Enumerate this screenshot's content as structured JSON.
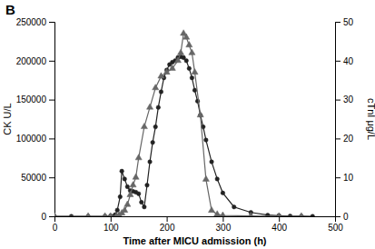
{
  "chart_data": {
    "type": "line",
    "title": "B",
    "xlabel": "Time after MICU admission (h)",
    "ylabel": "CK U/L",
    "y2label": "cTnI μg/L",
    "xlim": [
      0,
      500
    ],
    "ylim": [
      0,
      250000
    ],
    "y2lim": [
      0,
      50
    ],
    "xticks": [
      0,
      100,
      200,
      300,
      400,
      500
    ],
    "yticks": [
      0,
      50000,
      100000,
      150000,
      200000,
      250000
    ],
    "y2ticks": [
      0,
      10,
      20,
      30,
      40,
      50
    ],
    "grid": false,
    "series": [
      {
        "x": [
          0,
          30,
          60,
          90,
          100,
          108,
          112,
          117,
          120,
          125,
          130,
          135,
          140,
          145,
          150,
          155,
          160,
          165,
          170,
          175,
          180,
          185,
          190,
          195,
          200,
          205,
          210,
          215,
          220,
          225,
          230,
          235,
          240,
          245,
          250,
          255,
          260,
          265,
          270,
          280,
          290,
          300,
          320,
          350,
          380,
          400,
          420,
          440,
          460
        ],
        "values": [
          0,
          0,
          0,
          0,
          500,
          2000,
          8000,
          25000,
          58000,
          48000,
          38000,
          33000,
          32000,
          31000,
          29000,
          18000,
          12000,
          40000,
          70000,
          95000,
          115000,
          140000,
          160000,
          178000,
          188000,
          195000,
          198000,
          200000,
          204000,
          205000,
          204000,
          200000,
          190000,
          178000,
          162000,
          148000,
          130000,
          115000,
          98000,
          70000,
          48000,
          30000,
          12000,
          5000,
          1500,
          800,
          300,
          100,
          0
        ],
        "color": "#222222",
        "marker": "circle"
      },
      {
        "x": [
          0,
          60,
          90,
          100,
          110,
          115,
          120,
          125,
          130,
          135,
          140,
          145,
          150,
          160,
          170,
          180,
          190,
          200,
          210,
          220,
          225,
          230,
          235,
          240,
          245,
          250,
          260,
          270,
          280,
          290,
          300,
          350,
          400,
          440
        ],
        "values": [
          0,
          0,
          0,
          0,
          0,
          0.3,
          0.8,
          1.5,
          3,
          5.5,
          8,
          10,
          15,
          23,
          28,
          33,
          36,
          37,
          38,
          40,
          42,
          47,
          46,
          44,
          42,
          37,
          26,
          9.5,
          1.5,
          0.5,
          0.2,
          0.1,
          0,
          0
        ],
        "color": "#666666",
        "marker": "triangle",
        "axis": "y2"
      }
    ]
  }
}
